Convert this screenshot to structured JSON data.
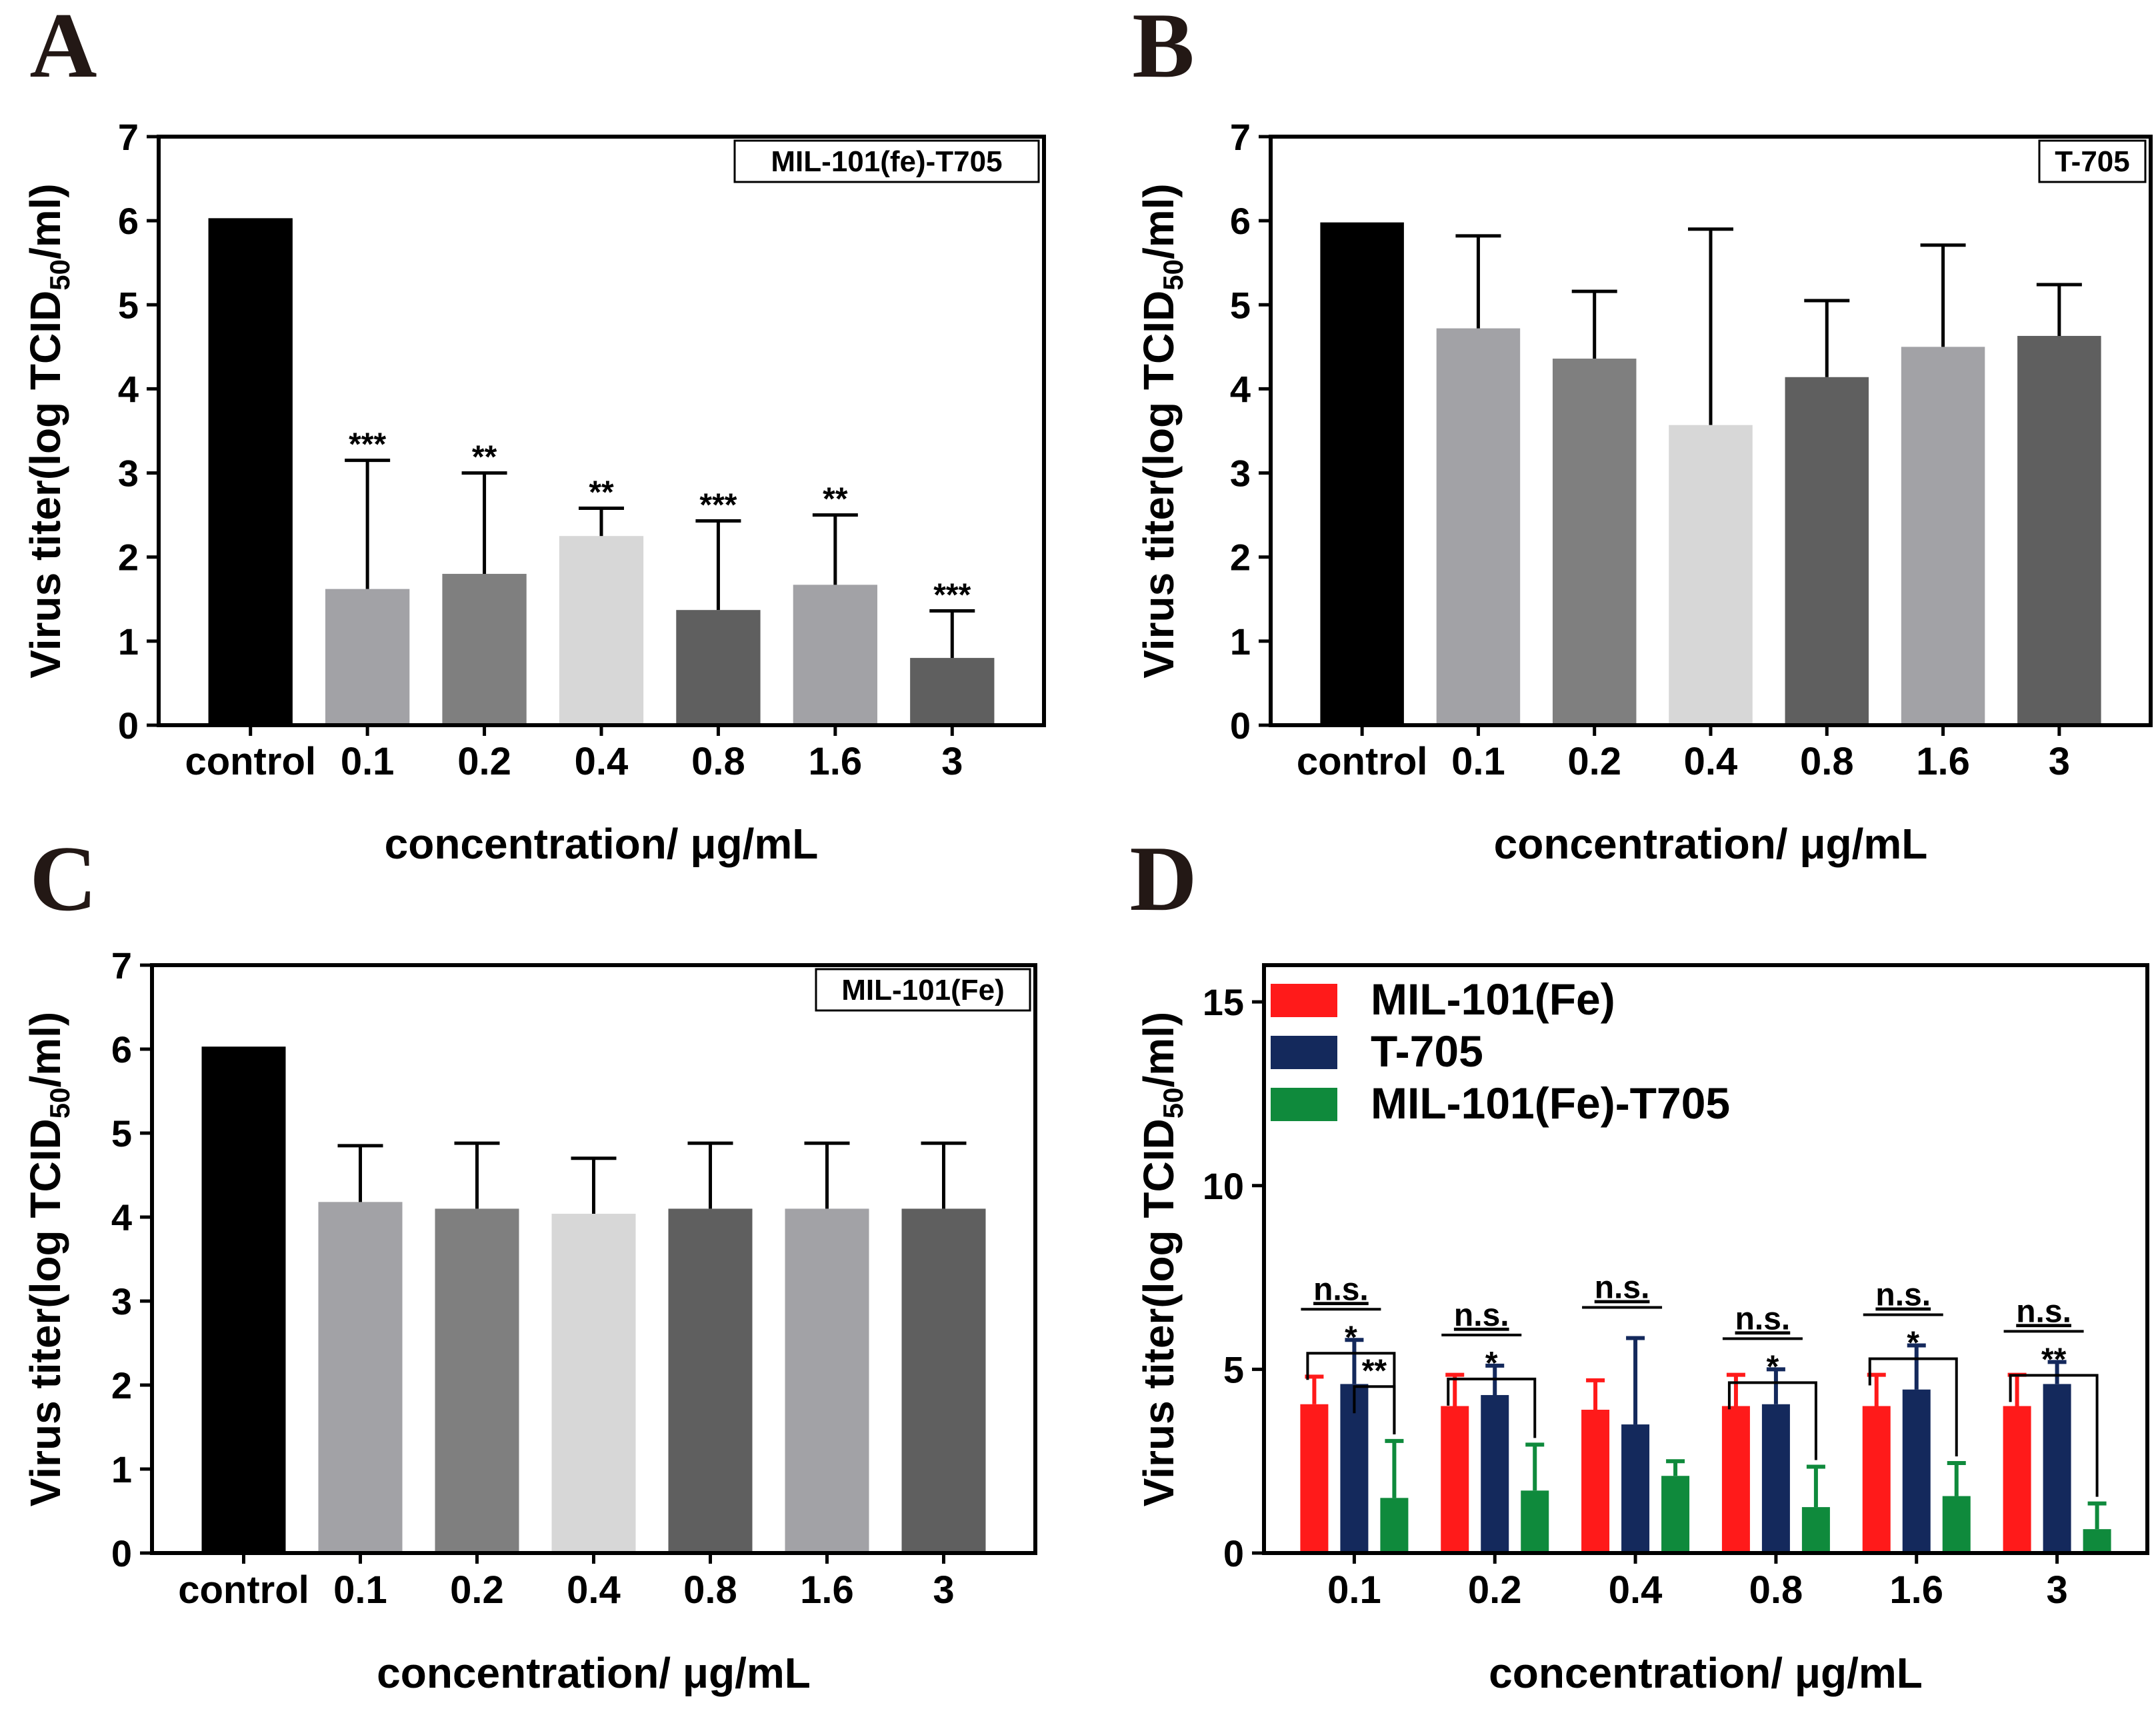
{
  "figure": {
    "panels": [
      {
        "id": "A",
        "label": "A",
        "box_label": "MIL-101(fe)-T705"
      },
      {
        "id": "B",
        "label": "B",
        "box_label": "T-705"
      },
      {
        "id": "C",
        "label": "C",
        "box_label": "MIL-101(Fe)"
      },
      {
        "id": "D",
        "label": "D",
        "box_label": ""
      }
    ],
    "ylabel_main": "Virus titer(log TCID",
    "ylabel_sub": "50",
    "ylabel_tail": "/ml)",
    "xlabel": "concentration/ μg/mL"
  },
  "colors": {
    "control": "#000000",
    "gray_light": "#a2a2a6",
    "gray_mid": "#7f7f7f",
    "gray_pale": "#d7d7d7",
    "gray_dark": "#5f5f5f",
    "red": "#ff1a1a",
    "navy": "#14295c",
    "green": "#0f8a3c"
  },
  "chart_data": [
    {
      "panel": "A",
      "type": "bar",
      "categories": [
        "control",
        "0.1",
        "0.2",
        "0.4",
        "0.8",
        "1.6",
        "3"
      ],
      "values": [
        6.03,
        1.62,
        1.8,
        2.25,
        1.37,
        1.67,
        0.8
      ],
      "error": [
        0,
        1.53,
        1.2,
        0.33,
        1.06,
        0.83,
        0.56
      ],
      "significance": [
        "",
        "***",
        "**",
        "**",
        "***",
        "**",
        "***"
      ],
      "ylim": [
        0,
        7
      ],
      "yticks": [
        0,
        1,
        2,
        3,
        4,
        5,
        6,
        7
      ],
      "xlabel": "concentration/ μg/mL",
      "ylabel": "Virus titer(log TCID50/ml)",
      "legend_box": "MIL-101(fe)-T705"
    },
    {
      "panel": "B",
      "type": "bar",
      "categories": [
        "control",
        "0.1",
        "0.2",
        "0.4",
        "0.8",
        "1.6",
        "3"
      ],
      "values": [
        5.98,
        4.72,
        4.36,
        3.57,
        4.14,
        4.5,
        4.63
      ],
      "error": [
        0,
        1.1,
        0.8,
        2.33,
        0.91,
        1.21,
        0.61
      ],
      "ylim": [
        0,
        7
      ],
      "yticks": [
        0,
        1,
        2,
        3,
        4,
        5,
        6,
        7
      ],
      "xlabel": "concentration/ μg/mL",
      "ylabel": "Virus titer(log TCID50/ml)",
      "legend_box": "T-705"
    },
    {
      "panel": "C",
      "type": "bar",
      "categories": [
        "control",
        "0.1",
        "0.2",
        "0.4",
        "0.8",
        "1.6",
        "3"
      ],
      "values": [
        6.03,
        4.18,
        4.1,
        4.04,
        4.1,
        4.1,
        4.1
      ],
      "error": [
        0,
        0.67,
        0.78,
        0.66,
        0.78,
        0.78,
        0.78
      ],
      "ylim": [
        0,
        7
      ],
      "yticks": [
        0,
        1,
        2,
        3,
        4,
        5,
        6,
        7
      ],
      "xlabel": "concentration/ μg/mL",
      "ylabel": "Virus titer(log TCID50/ml)",
      "legend_box": "MIL-101(Fe)"
    },
    {
      "panel": "D",
      "type": "bar",
      "categories": [
        "0.1",
        "0.2",
        "0.4",
        "0.8",
        "1.6",
        "3"
      ],
      "series": [
        {
          "name": "MIL-101(Fe)",
          "color": "#ff1a1a",
          "values": [
            4.05,
            4.0,
            3.9,
            4.0,
            4.0,
            4.0
          ],
          "error": [
            0.75,
            0.85,
            0.8,
            0.85,
            0.85,
            0.85
          ]
        },
        {
          "name": "T-705",
          "color": "#14295c",
          "values": [
            4.6,
            4.3,
            3.5,
            4.05,
            4.45,
            4.6
          ],
          "error": [
            1.2,
            0.8,
            2.35,
            0.95,
            1.2,
            0.6
          ]
        },
        {
          "name": "MIL-101(Fe)-T705",
          "color": "#0f8a3c",
          "values": [
            1.5,
            1.7,
            2.1,
            1.25,
            1.55,
            0.65
          ],
          "error": [
            1.55,
            1.25,
            0.4,
            1.1,
            0.9,
            0.7
          ]
        }
      ],
      "annotations": [
        {
          "group": "0.1",
          "ns": "n.s.",
          "brackets": [
            "*",
            "**"
          ]
        },
        {
          "group": "0.2",
          "ns": "n.s.",
          "brackets": [
            "*"
          ]
        },
        {
          "group": "0.4",
          "ns": "n.s.",
          "brackets": []
        },
        {
          "group": "0.8",
          "ns": "n.s.",
          "brackets": [
            "*"
          ]
        },
        {
          "group": "1.6",
          "ns": "n.s.",
          "brackets": [
            "*"
          ]
        },
        {
          "group": "3",
          "ns": "n.s.",
          "brackets": [
            "**"
          ]
        }
      ],
      "ylim": [
        0,
        16
      ],
      "yticks": [
        0,
        5,
        10,
        15
      ],
      "xlabel": "concentration/ μg/mL",
      "ylabel": "Virus titer(log TCID50/ml)",
      "legend": "top-left"
    }
  ]
}
